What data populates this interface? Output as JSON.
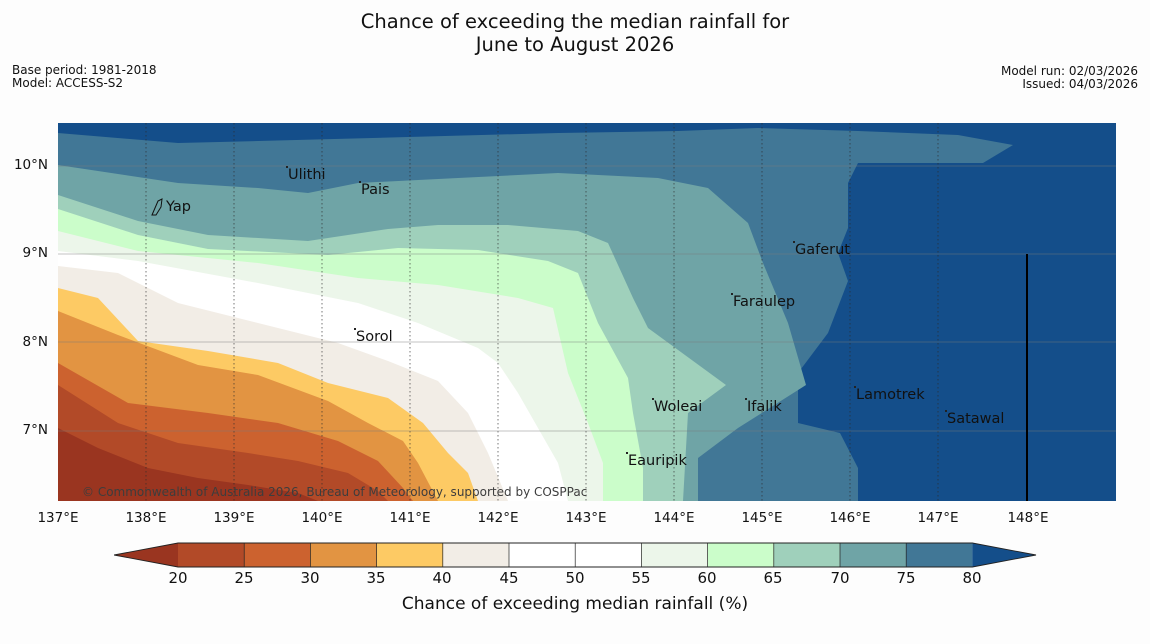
{
  "title_line1": "Chance of exceeding the median rainfall for",
  "title_line2": "June to August 2026",
  "meta": {
    "base_period": "Base period: 1981-2018",
    "model": "Model: ACCESS-S2",
    "model_run": "Model run: 02/03/2026",
    "issued": "Issued: 04/03/2026"
  },
  "map": {
    "copyright": "© Commonwealth of Australia 2026, Bureau of Meteorology, supported by COSPPac",
    "places": [
      "Yap",
      "Ulithi",
      "Pais",
      "Sorol",
      "Gaferut",
      "Faraulep",
      "Woleai",
      "Ifalik",
      "Eauripik",
      "Lamotrek",
      "Satawal"
    ],
    "latitude_labels": [
      "10°N",
      "9°N",
      "8°N",
      "7°N"
    ],
    "longitude_labels": [
      "137°E",
      "138°E",
      "139°E",
      "140°E",
      "141°E",
      "142°E",
      "143°E",
      "144°E",
      "145°E",
      "146°E",
      "147°E",
      "148°E"
    ]
  },
  "colorbar": {
    "label": "Chance of exceeding median rainfall (%)",
    "ticks": [
      "20",
      "25",
      "30",
      "35",
      "40",
      "45",
      "50",
      "55",
      "60",
      "65",
      "70",
      "75",
      "80"
    ],
    "colors": {
      "below_20": "#9a3520",
      "20_25": "#b24a28",
      "25_30": "#cc622f",
      "30_35": "#e29442",
      "35_40": "#fdca64",
      "40_45": "#f2ede6",
      "45_50": "#ffffff",
      "50_55": "#ffffff",
      "55_60": "#ecf6ea",
      "60_65": "#cbfdca",
      "65_70": "#9fd0bb",
      "70_75": "#6fa4a6",
      "75_80": "#417796",
      "above_80": "#144e8a"
    }
  }
}
